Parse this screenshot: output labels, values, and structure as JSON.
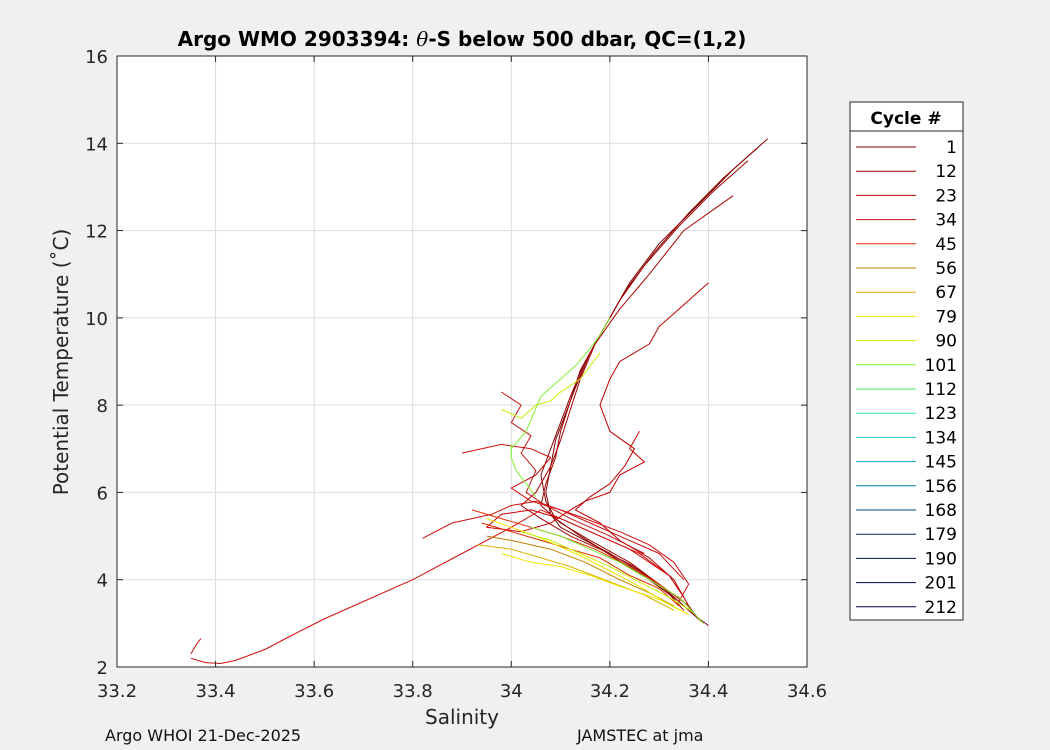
{
  "chart_data": {
    "type": "line",
    "title_prefix": "Argo WMO 2903394: ",
    "title_theta": "θ",
    "title_suffix": "-S below 500 dbar,  QC=(1,2)",
    "xlabel": "Salinity",
    "ylabel": "Potential Temperature (˚C)",
    "xlim": [
      33.2,
      34.6
    ],
    "ylim": [
      2,
      16
    ],
    "xticks": [
      33.2,
      33.4,
      33.6,
      33.8,
      34,
      34.2,
      34.4,
      34.6
    ],
    "xtick_labels": [
      "33.2",
      "33.4",
      "33.6",
      "33.8",
      "34",
      "34.2",
      "34.4",
      "34.6"
    ],
    "yticks": [
      2,
      4,
      6,
      8,
      10,
      12,
      14,
      16
    ],
    "ytick_labels": [
      "2",
      "4",
      "6",
      "8",
      "10",
      "12",
      "14",
      "16"
    ],
    "grid": true,
    "legend": {
      "title": "Cycle #",
      "placement": "right-outside",
      "entries": [
        {
          "label": "1",
          "color": "#7a0000"
        },
        {
          "label": "12",
          "color": "#9c0000"
        },
        {
          "label": "23",
          "color": "#bb0000"
        },
        {
          "label": "34",
          "color": "#d01010"
        },
        {
          "label": "45",
          "color": "#e02d00"
        },
        {
          "label": "56",
          "color": "#c08000"
        },
        {
          "label": "67",
          "color": "#d8b000"
        },
        {
          "label": "79",
          "color": "#f0e800"
        },
        {
          "label": "90",
          "color": "#c8f000"
        },
        {
          "label": "101",
          "color": "#80f030"
        },
        {
          "label": "112",
          "color": "#40f060"
        },
        {
          "label": "123",
          "color": "#30e8a0"
        },
        {
          "label": "134",
          "color": "#20d0c8"
        },
        {
          "label": "145",
          "color": "#10a8c0"
        },
        {
          "label": "156",
          "color": "#007aa0"
        },
        {
          "label": "168",
          "color": "#004a90"
        },
        {
          "label": "179",
          "color": "#002070"
        },
        {
          "label": "190",
          "color": "#001058"
        },
        {
          "label": "201",
          "color": "#000848"
        },
        {
          "label": "212",
          "color": "#000538"
        }
      ]
    },
    "series": [
      {
        "color": "#7a0000",
        "points": [
          [
            34.52,
            14.1
          ],
          [
            34.45,
            13.4
          ],
          [
            34.38,
            12.6
          ],
          [
            34.3,
            11.7
          ],
          [
            34.24,
            10.8
          ],
          [
            34.2,
            10.0
          ],
          [
            34.16,
            9.2
          ],
          [
            34.13,
            8.4
          ],
          [
            34.11,
            7.8
          ],
          [
            34.09,
            7.2
          ],
          [
            34.08,
            6.6
          ],
          [
            34.07,
            6.0
          ],
          [
            34.08,
            5.5
          ],
          [
            34.1,
            5.2
          ],
          [
            34.15,
            4.9
          ],
          [
            34.2,
            4.6
          ],
          [
            34.26,
            4.2
          ],
          [
            34.32,
            3.7
          ],
          [
            34.37,
            3.2
          ],
          [
            34.4,
            2.95
          ]
        ]
      },
      {
        "color": "#8a0000",
        "points": [
          [
            34.5,
            13.9
          ],
          [
            34.43,
            13.2
          ],
          [
            34.36,
            12.4
          ],
          [
            34.29,
            11.5
          ],
          [
            34.23,
            10.6
          ],
          [
            34.19,
            9.8
          ],
          [
            34.15,
            9.0
          ],
          [
            34.12,
            8.2
          ],
          [
            34.1,
            7.6
          ],
          [
            34.08,
            7.0
          ],
          [
            34.06,
            6.4
          ],
          [
            34.07,
            5.8
          ],
          [
            34.09,
            5.4
          ],
          [
            34.14,
            5.0
          ],
          [
            34.21,
            4.5
          ],
          [
            34.28,
            4.0
          ],
          [
            34.34,
            3.5
          ],
          [
            34.39,
            3.0
          ]
        ]
      },
      {
        "color": "#9c0000",
        "points": [
          [
            34.48,
            13.6
          ],
          [
            34.41,
            12.9
          ],
          [
            34.34,
            12.1
          ],
          [
            34.27,
            11.2
          ],
          [
            34.22,
            10.4
          ],
          [
            34.18,
            9.6
          ],
          [
            34.14,
            8.8
          ],
          [
            34.12,
            8.1
          ],
          [
            34.1,
            7.4
          ],
          [
            34.09,
            6.8
          ],
          [
            34.07,
            6.2
          ],
          [
            34.06,
            5.7
          ],
          [
            34.1,
            5.3
          ],
          [
            34.16,
            4.9
          ],
          [
            34.24,
            4.4
          ],
          [
            34.3,
            3.9
          ],
          [
            34.36,
            3.4
          ],
          [
            34.38,
            3.1
          ]
        ]
      },
      {
        "color": "#a80000",
        "points": [
          [
            34.45,
            12.8
          ],
          [
            34.35,
            12.0
          ],
          [
            34.28,
            11.0
          ],
          [
            34.22,
            10.2
          ],
          [
            34.17,
            9.4
          ],
          [
            34.14,
            8.6
          ],
          [
            34.12,
            7.9
          ],
          [
            34.1,
            7.2
          ],
          [
            34.08,
            6.6
          ],
          [
            34.05,
            6.0
          ],
          [
            34.02,
            5.7
          ],
          [
            34.06,
            5.4
          ],
          [
            34.12,
            5.0
          ],
          [
            34.18,
            4.7
          ],
          [
            34.25,
            4.3
          ],
          [
            34.31,
            3.8
          ],
          [
            34.35,
            3.3
          ]
        ]
      },
      {
        "color": "#bb0000",
        "points": [
          [
            34.4,
            10.8
          ],
          [
            34.34,
            10.2
          ],
          [
            34.3,
            9.8
          ],
          [
            34.28,
            9.4
          ],
          [
            34.22,
            9.0
          ],
          [
            34.2,
            8.6
          ],
          [
            34.18,
            8.0
          ],
          [
            34.2,
            7.4
          ],
          [
            34.25,
            7.0
          ],
          [
            34.23,
            6.6
          ],
          [
            34.2,
            6.2
          ],
          [
            34.16,
            5.9
          ],
          [
            34.13,
            5.6
          ],
          [
            34.18,
            5.3
          ],
          [
            34.22,
            4.9
          ],
          [
            34.28,
            4.5
          ],
          [
            34.33,
            4.0
          ],
          [
            34.36,
            3.4
          ]
        ]
      },
      {
        "color": "#c80000",
        "points": [
          [
            34.26,
            7.4
          ],
          [
            34.24,
            7.0
          ],
          [
            34.27,
            6.7
          ],
          [
            34.22,
            6.4
          ],
          [
            34.2,
            6.0
          ],
          [
            34.15,
            5.8
          ],
          [
            34.12,
            5.6
          ],
          [
            34.08,
            5.3
          ],
          [
            34.02,
            5.1
          ],
          [
            33.95,
            5.2
          ],
          [
            33.98,
            5.5
          ],
          [
            34.04,
            5.6
          ],
          [
            34.1,
            5.4
          ],
          [
            34.18,
            5.0
          ],
          [
            34.26,
            4.6
          ],
          [
            34.32,
            4.1
          ],
          [
            34.35,
            3.6
          ]
        ]
      },
      {
        "color": "#d01010",
        "points": [
          [
            33.82,
            4.95
          ],
          [
            33.88,
            5.3
          ],
          [
            33.96,
            5.5
          ],
          [
            34.0,
            5.7
          ],
          [
            34.05,
            5.8
          ],
          [
            34.1,
            5.6
          ],
          [
            34.15,
            5.4
          ],
          [
            34.22,
            5.1
          ],
          [
            34.28,
            4.8
          ],
          [
            34.33,
            4.4
          ],
          [
            34.36,
            3.9
          ],
          [
            34.34,
            3.5
          ]
        ]
      },
      {
        "color": "#d01010",
        "points": [
          [
            33.9,
            6.9
          ],
          [
            33.98,
            7.1
          ],
          [
            34.04,
            7.0
          ],
          [
            34.08,
            6.8
          ],
          [
            34.05,
            6.4
          ],
          [
            34.0,
            6.1
          ],
          [
            34.04,
            5.8
          ],
          [
            34.1,
            5.6
          ],
          [
            34.16,
            5.3
          ],
          [
            34.22,
            5.0
          ],
          [
            34.3,
            4.6
          ],
          [
            34.35,
            4.0
          ]
        ]
      },
      {
        "color": "#c01818",
        "points": [
          [
            33.98,
            8.3
          ],
          [
            34.02,
            8.0
          ],
          [
            34.0,
            7.6
          ],
          [
            34.04,
            7.3
          ],
          [
            34.02,
            6.9
          ],
          [
            34.05,
            6.5
          ],
          [
            34.03,
            6.0
          ],
          [
            34.07,
            5.7
          ],
          [
            34.12,
            5.4
          ],
          [
            34.2,
            5.0
          ],
          [
            34.27,
            4.6
          ]
        ]
      },
      {
        "color": "#d01010",
        "points": [
          [
            33.35,
            2.2
          ],
          [
            33.38,
            2.1
          ],
          [
            33.41,
            2.08
          ],
          [
            33.44,
            2.15
          ],
          [
            33.5,
            2.4
          ],
          [
            33.55,
            2.7
          ],
          [
            33.62,
            3.1
          ],
          [
            33.7,
            3.5
          ],
          [
            33.8,
            4.0
          ],
          [
            33.9,
            4.6
          ],
          [
            34.0,
            5.2
          ],
          [
            34.06,
            5.6
          ],
          [
            34.1,
            5.4
          ],
          [
            34.16,
            5.1
          ],
          [
            34.24,
            4.7
          ],
          [
            34.32,
            4.1
          ]
        ]
      },
      {
        "color": "#d01010",
        "points": [
          [
            33.35,
            2.3
          ],
          [
            33.36,
            2.5
          ],
          [
            33.37,
            2.65
          ]
        ]
      },
      {
        "color": "#e02d00",
        "points": [
          [
            33.92,
            5.6
          ],
          [
            33.98,
            5.4
          ],
          [
            34.04,
            5.2
          ],
          [
            34.1,
            5.0
          ],
          [
            34.17,
            4.7
          ],
          [
            34.24,
            4.3
          ],
          [
            34.3,
            3.9
          ],
          [
            34.35,
            3.5
          ]
        ]
      },
      {
        "color": "#e02d00",
        "points": [
          [
            33.94,
            5.3
          ],
          [
            34.0,
            5.1
          ],
          [
            34.06,
            4.9
          ],
          [
            34.12,
            4.7
          ],
          [
            34.18,
            4.5
          ],
          [
            34.24,
            4.1
          ],
          [
            34.3,
            3.8
          ],
          [
            34.34,
            3.4
          ]
        ]
      },
      {
        "color": "#c08000",
        "points": [
          [
            33.95,
            5.0
          ],
          [
            34.0,
            4.9
          ],
          [
            34.08,
            4.7
          ],
          [
            34.15,
            4.4
          ],
          [
            34.22,
            4.0
          ],
          [
            34.28,
            3.7
          ],
          [
            34.33,
            3.4
          ]
        ]
      },
      {
        "color": "#d8b000",
        "points": [
          [
            33.93,
            4.8
          ],
          [
            34.0,
            4.7
          ],
          [
            34.06,
            4.5
          ],
          [
            34.12,
            4.3
          ],
          [
            34.2,
            3.95
          ],
          [
            34.27,
            3.65
          ],
          [
            34.33,
            3.3
          ]
        ]
      },
      {
        "color": "#f0e800",
        "points": [
          [
            33.95,
            5.4
          ],
          [
            34.0,
            5.2
          ],
          [
            34.05,
            5.0
          ],
          [
            34.08,
            4.85
          ],
          [
            34.14,
            4.55
          ],
          [
            34.2,
            4.2
          ],
          [
            34.26,
            3.85
          ],
          [
            34.31,
            3.5
          ],
          [
            34.36,
            3.2
          ]
        ]
      },
      {
        "color": "#f0e800",
        "points": [
          [
            33.98,
            4.6
          ],
          [
            34.04,
            4.4
          ],
          [
            34.1,
            4.3
          ],
          [
            34.16,
            4.1
          ],
          [
            34.22,
            3.85
          ],
          [
            34.3,
            3.55
          ],
          [
            34.36,
            3.2
          ]
        ]
      },
      {
        "color": "#c8f000",
        "points": [
          [
            33.98,
            7.9
          ],
          [
            34.02,
            7.7
          ],
          [
            34.05,
            8.0
          ],
          [
            34.08,
            8.1
          ],
          [
            34.1,
            8.3
          ],
          [
            34.14,
            8.6
          ],
          [
            34.18,
            9.2
          ]
        ]
      },
      {
        "color": "#c8f000",
        "points": [
          [
            34.02,
            5.1
          ],
          [
            34.08,
            4.9
          ],
          [
            34.14,
            4.6
          ],
          [
            34.2,
            4.3
          ],
          [
            34.26,
            3.95
          ],
          [
            34.32,
            3.6
          ],
          [
            34.37,
            3.25
          ]
        ]
      },
      {
        "color": "#80f030",
        "points": [
          [
            34.0,
            7.0
          ],
          [
            34.03,
            7.4
          ],
          [
            34.06,
            8.2
          ],
          [
            34.1,
            8.6
          ],
          [
            34.13,
            8.9
          ],
          [
            34.16,
            9.3
          ],
          [
            34.18,
            9.6
          ],
          [
            34.2,
            10.0
          ]
        ]
      },
      {
        "color": "#80f030",
        "points": [
          [
            34.0,
            7.1
          ],
          [
            34.0,
            6.8
          ],
          [
            34.01,
            6.5
          ],
          [
            34.03,
            6.2
          ],
          [
            34.05,
            5.9
          ]
        ]
      },
      {
        "color": "#80f030",
        "points": [
          [
            34.04,
            5.2
          ],
          [
            34.1,
            5.0
          ],
          [
            34.16,
            4.7
          ],
          [
            34.22,
            4.4
          ],
          [
            34.28,
            4.0
          ],
          [
            34.34,
            3.6
          ],
          [
            34.39,
            3.0
          ]
        ]
      }
    ]
  },
  "footer": {
    "left": "Argo WHOI 21-Dec-2025",
    "right": "JAMSTEC at jma"
  }
}
